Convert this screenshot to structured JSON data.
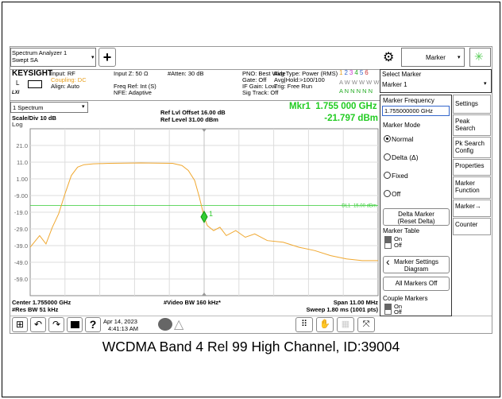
{
  "caption": "WCDMA Band 4 Rel 99 High Channel, ID:39004",
  "top_bar": {
    "app": [
      "Spectrum Analyzer 1",
      "Swept SA"
    ],
    "mode_menu": "Marker"
  },
  "status": {
    "brand": "KEYSIGHT",
    "col1": [
      "Input: RF",
      "Coupling: DC",
      "Align: Auto"
    ],
    "col2": [
      "Input Z: 50 Ω",
      "Freq Ref: Int (S)",
      "NFE: Adaptive"
    ],
    "col3": [
      "#Atten: 30 dB"
    ],
    "col4": [
      "PNO: Best Wide",
      "Gate: Off",
      "IF Gain: Low",
      "Sig Track: Off"
    ],
    "col5": [
      "Avg Type: Power (RMS)",
      "Avg|Hold:>100/100",
      "Trig: Free Run"
    ],
    "trace_numbers": [
      "1",
      "2",
      "3",
      "4",
      "5",
      "6"
    ],
    "trace_row2": "A W W W W W",
    "trace_row3": "A N N N N N"
  },
  "select_marker": {
    "label": "Select Marker",
    "value": "Marker 1"
  },
  "plot": {
    "window": "1 Spectrum",
    "scale": "Scale/Div 10 dB",
    "log": "Log",
    "ref_offset": "Ref Lvl Offset 16.00 dB",
    "ref_level": "Ref Level 31.00 dBm",
    "marker_readout": [
      "Mkr1  1.755 000 GHz",
      "-21.797 dBm"
    ],
    "xlim": [
      1749.5,
      1760.5
    ],
    "ylim": [
      -69,
      31
    ],
    "yticks": [
      {
        "value": 21,
        "label": "21.0"
      },
      {
        "value": 11,
        "label": "11.0"
      },
      {
        "value": 1,
        "label": "1.00"
      },
      {
        "value": -9,
        "label": "-9.00"
      },
      {
        "value": -19,
        "label": "-19.0"
      },
      {
        "value": -29,
        "label": "-29.0"
      },
      {
        "value": -39,
        "label": "-39.0"
      },
      {
        "value": -49,
        "label": "-49.0"
      },
      {
        "value": -59,
        "label": "-59.0"
      }
    ],
    "display_line": {
      "value": -15,
      "label": "DL1 -15.00 dBm",
      "color": "#33cc33"
    },
    "trace": {
      "color": "#f0a830",
      "x": [
        1749.5,
        1749.8,
        1750.0,
        1750.2,
        1750.4,
        1750.6,
        1750.8,
        1751.0,
        1751.2,
        1751.5,
        1752,
        1753,
        1754,
        1754.3,
        1754.5,
        1754.7,
        1754.85,
        1755.0,
        1755.1,
        1755.3,
        1755.5,
        1755.7,
        1756.0,
        1756.3,
        1756.6,
        1757,
        1757.5,
        1758,
        1758.5,
        1759,
        1759.5,
        1760,
        1760.5
      ],
      "values": [
        -40,
        -33,
        -38,
        -28,
        -20,
        -8,
        3,
        8,
        9.5,
        10,
        10.3,
        10.5,
        10.3,
        9,
        6,
        0,
        -10,
        -21.8,
        -27,
        -30,
        -28,
        -33,
        -30,
        -34,
        -32,
        -36,
        -37,
        -40,
        -42,
        -45,
        -47,
        -48,
        -48
      ]
    },
    "marker": {
      "label": "1",
      "x": 1755,
      "value": -21.797
    },
    "footer": [
      "Center 1.755000 GHz",
      "#Video BW 160 kHz*",
      "Span 11.00 MHz",
      "#Res BW 51 kHz",
      "Sweep 1.80 ms (1001 pts)"
    ]
  },
  "taskbar": {
    "date": "Apr 14, 2023",
    "time": "4:41:13 AM"
  },
  "panel": {
    "freq_label": "Marker Frequency",
    "freq_value": "1.755000000 GHz",
    "mode_label": "Marker Mode",
    "modes": [
      "Normal",
      "Delta (Δ)",
      "Fixed",
      "Off"
    ],
    "delta_button": [
      "Delta Marker",
      "(Reset Delta)"
    ],
    "table_label": "Marker Table",
    "on": "On",
    "off": "Off",
    "settings_button": [
      "Marker Settings",
      "Diagram"
    ],
    "all_off": "All Markers Off",
    "couple_label": "Couple Markers"
  },
  "tabs": [
    "Settings",
    "Peak Search",
    "Pk Search Config",
    "Properties",
    "Marker Function",
    "Marker→",
    "Counter"
  ]
}
